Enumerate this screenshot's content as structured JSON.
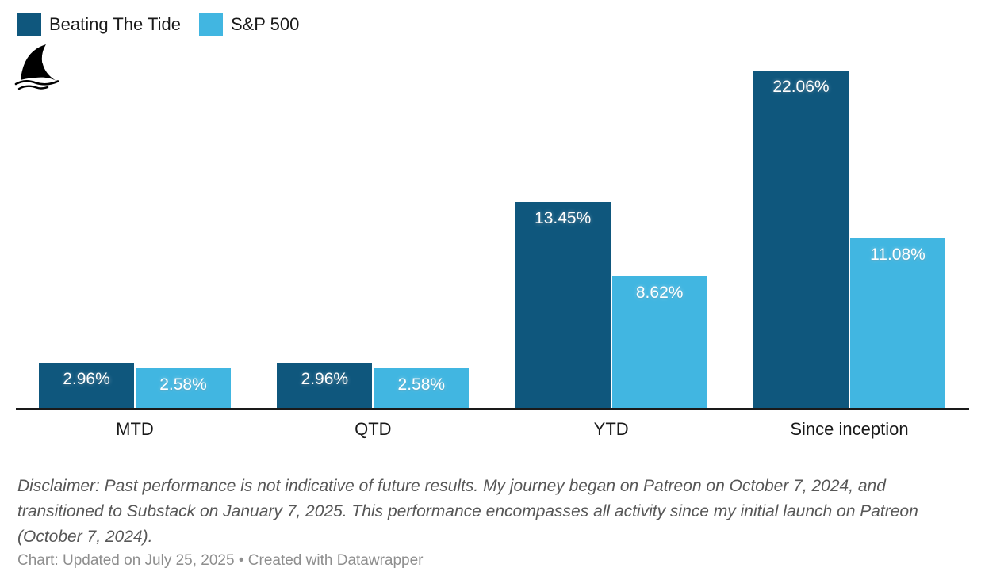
{
  "legend": {
    "items": [
      {
        "label": "Beating The Tide",
        "color": "#0f577d"
      },
      {
        "label": "S&P 500",
        "color": "#41b6e1"
      }
    ]
  },
  "logo": {
    "name": "shark-fin-logo"
  },
  "chart_data": {
    "type": "bar",
    "categories": [
      "MTD",
      "QTD",
      "YTD",
      "Since inception"
    ],
    "series": [
      {
        "name": "Beating The Tide",
        "color": "#0f577d",
        "values": [
          2.96,
          2.96,
          13.45,
          22.06
        ]
      },
      {
        "name": "S&P 500",
        "color": "#41b6e1",
        "values": [
          2.58,
          2.58,
          8.62,
          11.08
        ]
      }
    ],
    "value_labels": {
      "Beating The Tide": [
        "2.96%",
        "2.96%",
        "13.45%",
        "22.06%"
      ],
      "S&P 500": [
        "2.58%",
        "2.58%",
        "8.62%",
        "11.08%"
      ]
    },
    "value_suffix": "%",
    "ylim": [
      0,
      22.06
    ],
    "grid": false,
    "legend_position": "top-left",
    "axis_color": "#1a1a1a",
    "title": "",
    "xlabel": "",
    "ylabel": ""
  },
  "disclaimer": "Disclaimer: Past performance is not indicative of future results. My journey began on Patreon on October 7, 2024, and transitioned to Substack on January 7, 2025. This performance encompasses all activity since my initial launch on Patreon (October 7, 2024).",
  "footer": "Chart: Updated on July 25, 2025 • Created with Datawrapper"
}
